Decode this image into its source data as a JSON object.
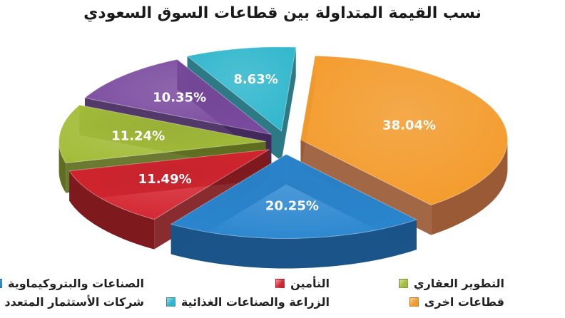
{
  "chart_data": {
    "type": "pie",
    "title": "نسب القيمة المتداولة بين قطاعات السوق السعودي",
    "slices": [
      {
        "name": "قطاعات اخرى",
        "value": 38.04,
        "label": "38.04%",
        "color": "#f39a2a",
        "side_color": "#9a5a35"
      },
      {
        "name": "الصناعات والبتروكيماوية",
        "value": 20.25,
        "label": "20.25%",
        "color": "#2a86cf",
        "side_color": "#1a5488"
      },
      {
        "name": "التأمين",
        "value": 11.49,
        "label": "11.49%",
        "color": "#d3242f",
        "side_color": "#7e1a1e"
      },
      {
        "name": "التطوير العقاري",
        "value": 11.24,
        "label": "11.24%",
        "color": "#a3bd3a",
        "side_color": "#5f6e1f"
      },
      {
        "name": "شركات الأستثمار المتعدد",
        "value": 10.35,
        "label": "10.35%",
        "color": "#7a4a9e",
        "side_color": "#43285c"
      },
      {
        "name": "الزراعة والصناعات الغذائية",
        "value": 8.63,
        "label": "8.63%",
        "color": "#2fb6cc",
        "side_color": "#1b6e7c"
      }
    ],
    "legend_placement": "bottom",
    "legend": {
      "row1": [
        "الصناعات والبتروكيماوية",
        "التأمين",
        "التطوير العقاري"
      ],
      "row2": [
        "شركات الأستثمار المتعدد",
        "الزراعة والصناعات الغذائية",
        "قطاعات اخرى"
      ]
    }
  }
}
